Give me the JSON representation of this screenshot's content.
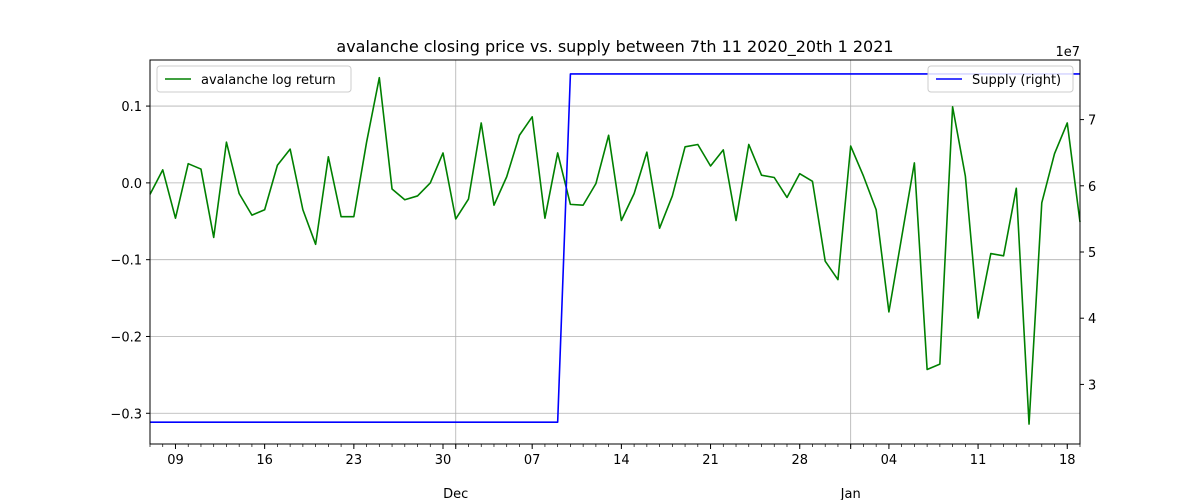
{
  "chart_data": {
    "type": "line",
    "title": "avalanche closing price vs. supply between 7th 11 2020_20th 1 2021",
    "xlabel": "",
    "ylabel": "",
    "y2_scale_label": "1e7",
    "x_range": [
      "2020-11-07",
      "2021-01-19"
    ],
    "ylim": [
      -0.34,
      0.16
    ],
    "y2lim": [
      2.1,
      7.9
    ],
    "grid": true,
    "legend_left": "top-left",
    "legend_right": "top-right",
    "x_day_ticks": [
      {
        "date": "2020-11-09",
        "label": "09"
      },
      {
        "date": "2020-11-16",
        "label": "16"
      },
      {
        "date": "2020-11-23",
        "label": "23"
      },
      {
        "date": "2020-11-30",
        "label": "30"
      },
      {
        "date": "2020-12-07",
        "label": "07"
      },
      {
        "date": "2020-12-14",
        "label": "14"
      },
      {
        "date": "2020-12-21",
        "label": "21"
      },
      {
        "date": "2020-12-28",
        "label": "28"
      },
      {
        "date": "2021-01-04",
        "label": "04"
      },
      {
        "date": "2021-01-11",
        "label": "11"
      },
      {
        "date": "2021-01-18",
        "label": "18"
      }
    ],
    "x_month_ticks": [
      {
        "date": "2020-12-01",
        "label": "Dec"
      },
      {
        "date": "2021-01-01",
        "label": "Jan"
      }
    ],
    "y_ticks": [
      {
        "value": 0.1,
        "label": "0.1"
      },
      {
        "value": 0.0,
        "label": "0.0"
      },
      {
        "value": -0.1,
        "label": "−0.1"
      },
      {
        "value": -0.2,
        "label": "−0.2"
      },
      {
        "value": -0.3,
        "label": "−0.3"
      }
    ],
    "y2_ticks": [
      {
        "value": 3,
        "label": "3"
      },
      {
        "value": 4,
        "label": "4"
      },
      {
        "value": 5,
        "label": "5"
      },
      {
        "value": 6,
        "label": "6"
      },
      {
        "value": 7,
        "label": "7"
      }
    ],
    "series": [
      {
        "name": "avalanche log return",
        "axis": "left",
        "color": "#008000",
        "points": [
          [
            "2020-11-07",
            -0.015
          ],
          [
            "2020-11-08",
            0.017
          ],
          [
            "2020-11-09",
            -0.046
          ],
          [
            "2020-11-10",
            0.025
          ],
          [
            "2020-11-11",
            0.018
          ],
          [
            "2020-11-12",
            -0.071
          ],
          [
            "2020-11-13",
            0.053
          ],
          [
            "2020-11-14",
            -0.014
          ],
          [
            "2020-11-15",
            -0.042
          ],
          [
            "2020-11-16",
            -0.035
          ],
          [
            "2020-11-17",
            0.023
          ],
          [
            "2020-11-18",
            0.044
          ],
          [
            "2020-11-19",
            -0.035
          ],
          [
            "2020-11-20",
            -0.08
          ],
          [
            "2020-11-21",
            0.034
          ],
          [
            "2020-11-22",
            -0.044
          ],
          [
            "2020-11-23",
            -0.044
          ],
          [
            "2020-11-24",
            0.053
          ],
          [
            "2020-11-25",
            0.137
          ],
          [
            "2020-11-26",
            -0.008
          ],
          [
            "2020-11-27",
            -0.022
          ],
          [
            "2020-11-28",
            -0.017
          ],
          [
            "2020-11-29",
            0.0
          ],
          [
            "2020-11-30",
            0.039
          ],
          [
            "2020-12-01",
            -0.047
          ],
          [
            "2020-12-02",
            -0.021
          ],
          [
            "2020-12-03",
            0.078
          ],
          [
            "2020-12-04",
            -0.029
          ],
          [
            "2020-12-05",
            0.008
          ],
          [
            "2020-12-06",
            0.062
          ],
          [
            "2020-12-07",
            0.086
          ],
          [
            "2020-12-08",
            -0.046
          ],
          [
            "2020-12-09",
            0.039
          ],
          [
            "2020-12-10",
            -0.028
          ],
          [
            "2020-12-11",
            -0.029
          ],
          [
            "2020-12-12",
            -0.001
          ],
          [
            "2020-12-13",
            0.062
          ],
          [
            "2020-12-14",
            -0.049
          ],
          [
            "2020-12-15",
            -0.014
          ],
          [
            "2020-12-16",
            0.04
          ],
          [
            "2020-12-17",
            -0.059
          ],
          [
            "2020-12-18",
            -0.017
          ],
          [
            "2020-12-19",
            0.047
          ],
          [
            "2020-12-20",
            0.05
          ],
          [
            "2020-12-21",
            0.022
          ],
          [
            "2020-12-22",
            0.043
          ],
          [
            "2020-12-23",
            -0.049
          ],
          [
            "2020-12-24",
            0.05
          ],
          [
            "2020-12-25",
            0.01
          ],
          [
            "2020-12-26",
            0.007
          ],
          [
            "2020-12-27",
            -0.019
          ],
          [
            "2020-12-28",
            0.012
          ],
          [
            "2020-12-29",
            0.002
          ],
          [
            "2020-12-30",
            -0.102
          ],
          [
            "2020-12-31",
            -0.126
          ],
          [
            "2021-01-01",
            0.048
          ],
          [
            "2021-01-02",
            0.009
          ],
          [
            "2021-01-03",
            -0.035
          ],
          [
            "2021-01-04",
            -0.168
          ],
          [
            "2021-01-05",
            -0.071
          ],
          [
            "2021-01-06",
            0.026
          ],
          [
            "2021-01-07",
            -0.243
          ],
          [
            "2021-01-08",
            -0.236
          ],
          [
            "2021-01-09",
            0.099
          ],
          [
            "2021-01-10",
            0.009
          ],
          [
            "2021-01-11",
            -0.176
          ],
          [
            "2021-01-12",
            -0.092
          ],
          [
            "2021-01-13",
            -0.095
          ],
          [
            "2021-01-14",
            -0.007
          ],
          [
            "2021-01-15",
            -0.314
          ],
          [
            "2021-01-16",
            -0.026
          ],
          [
            "2021-01-17",
            0.038
          ],
          [
            "2021-01-18",
            0.078
          ],
          [
            "2021-01-19",
            -0.051
          ]
        ]
      },
      {
        "name": "Supply (right)",
        "axis": "right",
        "color": "#0000ff",
        "points": [
          [
            "2020-11-07",
            2.43
          ],
          [
            "2020-12-09",
            2.43
          ],
          [
            "2020-12-10",
            7.69
          ],
          [
            "2021-01-19",
            7.69
          ]
        ]
      }
    ]
  }
}
